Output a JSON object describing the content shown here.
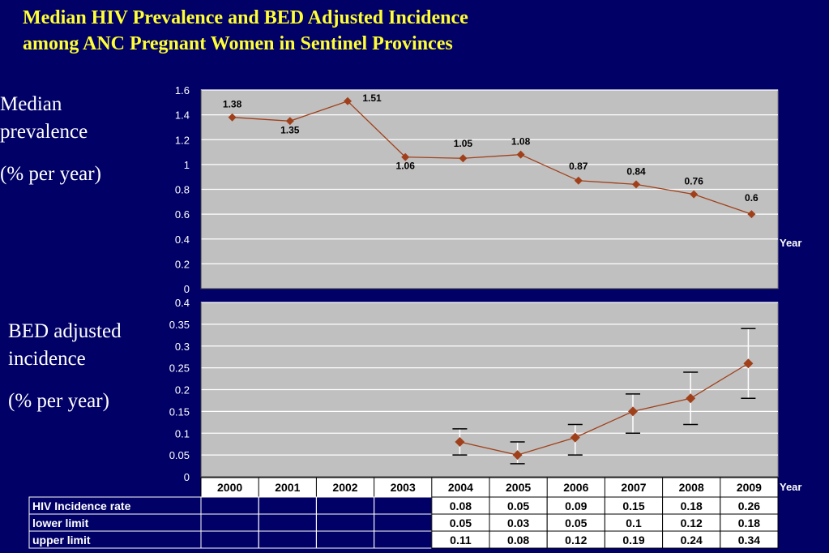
{
  "slide": {
    "title_line1": "Median HIV Prevalence and BED Adjusted Incidence",
    "title_line2": "among ANC Pregnant Women in Sentinel Provinces"
  },
  "labels": {
    "prevalence_line1": "Median",
    "prevalence_line2": "prevalence",
    "prevalence_line3": "(% per year)",
    "incidence_line1": "BED adjusted",
    "incidence_line2": "incidence",
    "incidence_line3": "(% per year)"
  },
  "chart_data": [
    {
      "type": "line",
      "xlabel": "Year",
      "ylabel": "Median prevalence (% per year)",
      "x": [
        "2000",
        "2001",
        "2002",
        "2003",
        "2004",
        "2005",
        "2006",
        "2007",
        "2008",
        "2009"
      ],
      "values": [
        1.38,
        1.35,
        1.51,
        1.06,
        1.05,
        1.08,
        0.87,
        0.84,
        0.76,
        0.6
      ],
      "data_labels": [
        "1.38",
        "1.35",
        "1.51",
        "1.06",
        "1.05",
        "1.08",
        "0.87",
        "0.84",
        "0.76",
        "0.6"
      ],
      "ylim": [
        0,
        1.6
      ],
      "yticks": [
        "0",
        "0.2",
        "0.4",
        "0.6",
        "0.8",
        "1",
        "1.2",
        "1.4",
        "1.6"
      ],
      "grid": true,
      "colors": {
        "line": "#a0401a",
        "marker": "#a0401a",
        "plot_bg": "#c0c0c0",
        "grid": "#ffffff"
      }
    },
    {
      "type": "line",
      "xlabel": "Year",
      "ylabel": "BED adjusted incidence (% per year)",
      "x": [
        "2000",
        "2001",
        "2002",
        "2003",
        "2004",
        "2005",
        "2006",
        "2007",
        "2008",
        "2009"
      ],
      "values": [
        null,
        null,
        null,
        null,
        0.08,
        0.05,
        0.09,
        0.15,
        0.18,
        0.26
      ],
      "lower": [
        null,
        null,
        null,
        null,
        0.05,
        0.03,
        0.05,
        0.1,
        0.12,
        0.18
      ],
      "upper": [
        null,
        null,
        null,
        null,
        0.11,
        0.08,
        0.12,
        0.19,
        0.24,
        0.34
      ],
      "ylim": [
        0,
        0.4
      ],
      "yticks": [
        "0",
        "0.05",
        "0.1",
        "0.15",
        "0.2",
        "0.25",
        "0.3",
        "0.35",
        "0.4"
      ],
      "grid": true,
      "colors": {
        "line": "#a0401a",
        "marker": "#a0401a",
        "error_bar": "#ffffff",
        "plot_bg": "#c0c0c0",
        "grid": "#ffffff"
      }
    },
    {
      "type": "table",
      "columns": [
        "2000",
        "2001",
        "2002",
        "2003",
        "2004",
        "2005",
        "2006",
        "2007",
        "2008",
        "2009"
      ],
      "rows": [
        {
          "name": "HIV Incidence rate",
          "values": [
            "",
            "",
            "",
            "",
            "0.08",
            "0.05",
            "0.09",
            "0.15",
            "0.18",
            "0.26"
          ]
        },
        {
          "name": "lower limit",
          "values": [
            "",
            "",
            "",
            "",
            "0.05",
            "0.03",
            "0.05",
            "0.1",
            "0.12",
            "0.18"
          ]
        },
        {
          "name": "upper limit",
          "values": [
            "",
            "",
            "",
            "",
            "0.11",
            "0.08",
            "0.12",
            "0.19",
            "0.24",
            "0.34"
          ]
        }
      ]
    }
  ]
}
